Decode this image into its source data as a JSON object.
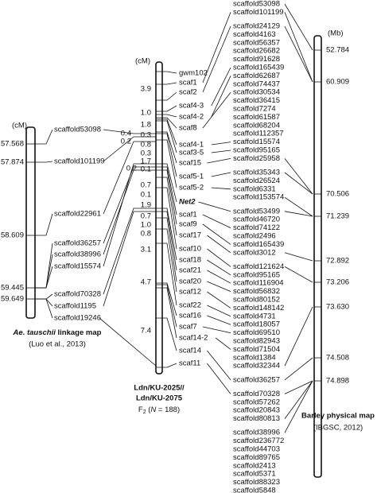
{
  "left_map": {
    "unit": "(cM)",
    "positions": [
      "57.568",
      "57.874",
      "58.609",
      "59.445",
      "59.649"
    ],
    "scaffolds": [
      "scaffold53098",
      "scaffold101199",
      "scaffold22961",
      "scaffold36257",
      "scaffold38996",
      "scaffold15574",
      "scaffold70328",
      "scaffold1195",
      "scaffold19246"
    ],
    "caption": {
      "italic": "Ae. tauschii",
      "rest": " linkage map",
      "source": "(Luo et al., 2013)"
    }
  },
  "middle_map": {
    "unit": "(cM)",
    "markers": [
      "gwm102",
      "scaf1",
      "scaf2",
      "scaf4-3",
      "scaf4-2",
      "scaf8",
      "scaf4-1",
      "scaf3-5",
      "scaf15",
      "scaf5-1",
      "scaf5-2",
      "Net2",
      "scaf1",
      "scaf9",
      "scaf17",
      "scaf10",
      "scaf18",
      "scaf21",
      "scaf20",
      "scaf12",
      "scaf22",
      "scaf16",
      "scaf7",
      "scaf14-2",
      "scaf14",
      "scaf11"
    ],
    "intervals": [
      "3.9",
      "1.0",
      "1.8",
      "0.3",
      "0.8",
      "0.3",
      "1.7",
      "0.1",
      "0.7",
      "0.1",
      "1.9",
      "0.7",
      "1.0",
      "0.8",
      "3.1",
      "4.7",
      "7.4"
    ],
    "side_intervals": [
      "0.4",
      "0.2",
      "0.2"
    ],
    "caption": {
      "line1": "Ldn/KU-2025//",
      "line2": "Ldn/KU-2075",
      "f": "F",
      "sub": "2",
      "open": " (",
      "n": "N",
      "rest": " = 188)"
    }
  },
  "scaffold_list": {
    "groups": [
      [
        "scaffold53098",
        "scaffold101199"
      ],
      [
        "scaffold24129",
        "scaffold4163",
        "scaffold56357",
        "scaffold26682",
        "scaffold91628",
        "scaffold165439",
        "scaffold62687",
        "scaffold74437",
        "scaffold30534",
        "scaffold36415",
        "scaffold7274",
        "scaffold61587",
        "scaffold68204",
        "scaffold112357",
        "scaffold15574",
        "scaffold95165",
        "scaffold25958"
      ],
      [
        "scaffold35343",
        "scaffold26524",
        "scaffold6331",
        "scaffold153574"
      ],
      [
        "scaffold53499",
        "scaffold46720",
        "scaffold74122",
        "scaffold2496",
        "scaffold165439",
        "scaffold3012"
      ],
      [
        "scaffold121624",
        "scaffold95165",
        "scaffold116904",
        "scaffold56832",
        "scaffold80152",
        "scaffold148142",
        "scaffold4731",
        "scaffold18057",
        "scaffold69510",
        "scaffold82943",
        "scaffold71504",
        "scaffold1384",
        "scaffold32344"
      ],
      [
        "scaffold36257"
      ],
      [
        "scaffold70328",
        "scaffold57262",
        "scaffold20843",
        "scaffold80813"
      ],
      [
        "scaffold38996",
        "scaffold236772",
        "scaffold44703",
        "scaffold89765",
        "scaffold2413",
        "scaffold5371",
        "scaffold88323",
        "scaffold5848"
      ]
    ]
  },
  "right_map": {
    "unit": "(Mb)",
    "positions": [
      "52.784",
      "60.909",
      "70.506",
      "71.239",
      "72.892",
      "73.206",
      "73.630",
      "74.508",
      "74.898"
    ],
    "caption": {
      "title": "Barley physical map",
      "source": "(IBGSC, 2012)"
    }
  }
}
